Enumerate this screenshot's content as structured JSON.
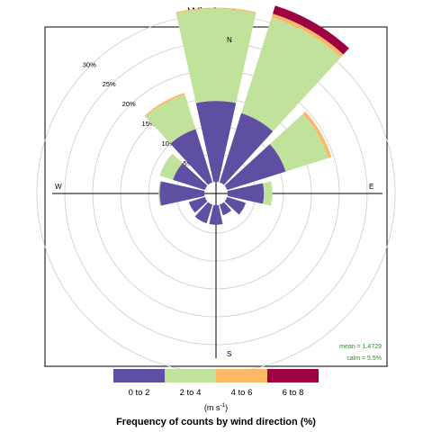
{
  "chart_data": {
    "type": "polar-bar",
    "title": "Wind rose",
    "xlabel": "Frequency of counts by wind direction (%)",
    "unit_text": "(m s",
    "unit_exp": "-1",
    "unit_close": ")",
    "stacked": true,
    "radial_ticks": [
      5,
      10,
      15,
      20,
      25,
      30
    ],
    "radial_tick_labels": [
      "5%",
      "10%",
      "15%",
      "20%",
      "25%",
      "30%"
    ],
    "directions": [
      "N",
      "E",
      "S",
      "W"
    ],
    "sectors_deg": [
      0,
      30,
      60,
      90,
      120,
      150,
      180,
      210,
      240,
      270,
      300,
      330
    ],
    "series": [
      {
        "name": "0 to 2",
        "color": "#5e4fa2",
        "values": [
          14.5,
          13.0,
          11.0,
          6.5,
          3.5,
          2.0,
          3.5,
          3.5,
          3.0,
          8.0,
          6.0,
          10.0
        ]
      },
      {
        "name": "2 to 4",
        "color": "#c1e29a",
        "values": [
          16.5,
          18.0,
          8.0,
          1.5,
          0.0,
          0.0,
          0.0,
          0.0,
          0.0,
          0.2,
          2.5,
          6.5
        ]
      },
      {
        "name": "4 to 6",
        "color": "#fdb866",
        "values": [
          0.2,
          0.7,
          0.6,
          0.0,
          0.0,
          0.0,
          0.0,
          0.0,
          0.0,
          0.0,
          0.0,
          0.3
        ]
      },
      {
        "name": "6 to 8",
        "color": "#9e0142",
        "values": [
          0.0,
          1.5,
          0.0,
          0.0,
          0.0,
          0.0,
          0.0,
          0.0,
          0.0,
          0.0,
          0.0,
          0.0
        ]
      }
    ],
    "mean_text": "mean = 1.4729",
    "calm_text": "calm = 5.5%"
  }
}
